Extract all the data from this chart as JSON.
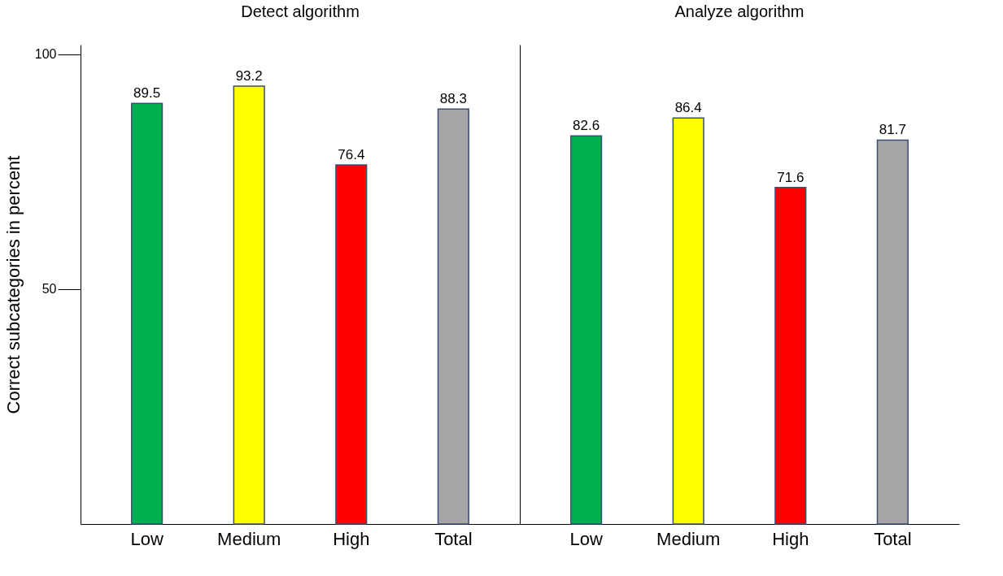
{
  "chart_data": [
    {
      "type": "bar",
      "title": "Detect algorithm",
      "ylabel": "Correct subcategories in percent",
      "categories": [
        "Low",
        "Medium",
        "High",
        "Total"
      ],
      "values": [
        89.5,
        93.2,
        76.4,
        88.3
      ],
      "colors": [
        "#00b050",
        "#ffff00",
        "#ff0000",
        "#a6a6a6"
      ],
      "data_labels": true,
      "ylim": [
        0,
        102
      ],
      "yticks": [
        50,
        100
      ],
      "grid": false
    },
    {
      "type": "bar",
      "title": "Analyze algorithm",
      "categories": [
        "Low",
        "Medium",
        "High",
        "Total"
      ],
      "values": [
        82.6,
        86.4,
        71.6,
        81.7
      ],
      "colors": [
        "#00b050",
        "#ffff00",
        "#ff0000",
        "#a6a6a6"
      ],
      "data_labels": true,
      "ylim": [
        0,
        102
      ],
      "grid": false,
      "tick_labels": "x"
    }
  ]
}
